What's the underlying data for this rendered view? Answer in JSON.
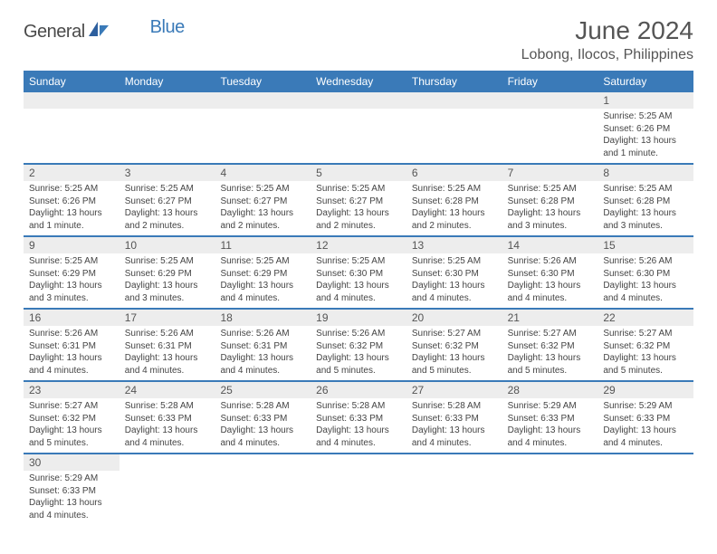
{
  "logo": {
    "text1": "General",
    "text2": "Blue"
  },
  "title": "June 2024",
  "location": "Lobong, Ilocos, Philippines",
  "weekdays": [
    "Sunday",
    "Monday",
    "Tuesday",
    "Wednesday",
    "Thursday",
    "Friday",
    "Saturday"
  ],
  "colors": {
    "header_bg": "#3a7ab8",
    "header_text": "#ffffff",
    "daynum_bg": "#ededed",
    "text": "#555555",
    "border": "#3a7ab8"
  },
  "weeks": [
    [
      null,
      null,
      null,
      null,
      null,
      null,
      {
        "n": "1",
        "sunrise": "Sunrise: 5:25 AM",
        "sunset": "Sunset: 6:26 PM",
        "daylight": "Daylight: 13 hours and 1 minute."
      }
    ],
    [
      {
        "n": "2",
        "sunrise": "Sunrise: 5:25 AM",
        "sunset": "Sunset: 6:26 PM",
        "daylight": "Daylight: 13 hours and 1 minute."
      },
      {
        "n": "3",
        "sunrise": "Sunrise: 5:25 AM",
        "sunset": "Sunset: 6:27 PM",
        "daylight": "Daylight: 13 hours and 2 minutes."
      },
      {
        "n": "4",
        "sunrise": "Sunrise: 5:25 AM",
        "sunset": "Sunset: 6:27 PM",
        "daylight": "Daylight: 13 hours and 2 minutes."
      },
      {
        "n": "5",
        "sunrise": "Sunrise: 5:25 AM",
        "sunset": "Sunset: 6:27 PM",
        "daylight": "Daylight: 13 hours and 2 minutes."
      },
      {
        "n": "6",
        "sunrise": "Sunrise: 5:25 AM",
        "sunset": "Sunset: 6:28 PM",
        "daylight": "Daylight: 13 hours and 2 minutes."
      },
      {
        "n": "7",
        "sunrise": "Sunrise: 5:25 AM",
        "sunset": "Sunset: 6:28 PM",
        "daylight": "Daylight: 13 hours and 3 minutes."
      },
      {
        "n": "8",
        "sunrise": "Sunrise: 5:25 AM",
        "sunset": "Sunset: 6:28 PM",
        "daylight": "Daylight: 13 hours and 3 minutes."
      }
    ],
    [
      {
        "n": "9",
        "sunrise": "Sunrise: 5:25 AM",
        "sunset": "Sunset: 6:29 PM",
        "daylight": "Daylight: 13 hours and 3 minutes."
      },
      {
        "n": "10",
        "sunrise": "Sunrise: 5:25 AM",
        "sunset": "Sunset: 6:29 PM",
        "daylight": "Daylight: 13 hours and 3 minutes."
      },
      {
        "n": "11",
        "sunrise": "Sunrise: 5:25 AM",
        "sunset": "Sunset: 6:29 PM",
        "daylight": "Daylight: 13 hours and 4 minutes."
      },
      {
        "n": "12",
        "sunrise": "Sunrise: 5:25 AM",
        "sunset": "Sunset: 6:30 PM",
        "daylight": "Daylight: 13 hours and 4 minutes."
      },
      {
        "n": "13",
        "sunrise": "Sunrise: 5:25 AM",
        "sunset": "Sunset: 6:30 PM",
        "daylight": "Daylight: 13 hours and 4 minutes."
      },
      {
        "n": "14",
        "sunrise": "Sunrise: 5:26 AM",
        "sunset": "Sunset: 6:30 PM",
        "daylight": "Daylight: 13 hours and 4 minutes."
      },
      {
        "n": "15",
        "sunrise": "Sunrise: 5:26 AM",
        "sunset": "Sunset: 6:30 PM",
        "daylight": "Daylight: 13 hours and 4 minutes."
      }
    ],
    [
      {
        "n": "16",
        "sunrise": "Sunrise: 5:26 AM",
        "sunset": "Sunset: 6:31 PM",
        "daylight": "Daylight: 13 hours and 4 minutes."
      },
      {
        "n": "17",
        "sunrise": "Sunrise: 5:26 AM",
        "sunset": "Sunset: 6:31 PM",
        "daylight": "Daylight: 13 hours and 4 minutes."
      },
      {
        "n": "18",
        "sunrise": "Sunrise: 5:26 AM",
        "sunset": "Sunset: 6:31 PM",
        "daylight": "Daylight: 13 hours and 4 minutes."
      },
      {
        "n": "19",
        "sunrise": "Sunrise: 5:26 AM",
        "sunset": "Sunset: 6:32 PM",
        "daylight": "Daylight: 13 hours and 5 minutes."
      },
      {
        "n": "20",
        "sunrise": "Sunrise: 5:27 AM",
        "sunset": "Sunset: 6:32 PM",
        "daylight": "Daylight: 13 hours and 5 minutes."
      },
      {
        "n": "21",
        "sunrise": "Sunrise: 5:27 AM",
        "sunset": "Sunset: 6:32 PM",
        "daylight": "Daylight: 13 hours and 5 minutes."
      },
      {
        "n": "22",
        "sunrise": "Sunrise: 5:27 AM",
        "sunset": "Sunset: 6:32 PM",
        "daylight": "Daylight: 13 hours and 5 minutes."
      }
    ],
    [
      {
        "n": "23",
        "sunrise": "Sunrise: 5:27 AM",
        "sunset": "Sunset: 6:32 PM",
        "daylight": "Daylight: 13 hours and 5 minutes."
      },
      {
        "n": "24",
        "sunrise": "Sunrise: 5:28 AM",
        "sunset": "Sunset: 6:33 PM",
        "daylight": "Daylight: 13 hours and 4 minutes."
      },
      {
        "n": "25",
        "sunrise": "Sunrise: 5:28 AM",
        "sunset": "Sunset: 6:33 PM",
        "daylight": "Daylight: 13 hours and 4 minutes."
      },
      {
        "n": "26",
        "sunrise": "Sunrise: 5:28 AM",
        "sunset": "Sunset: 6:33 PM",
        "daylight": "Daylight: 13 hours and 4 minutes."
      },
      {
        "n": "27",
        "sunrise": "Sunrise: 5:28 AM",
        "sunset": "Sunset: 6:33 PM",
        "daylight": "Daylight: 13 hours and 4 minutes."
      },
      {
        "n": "28",
        "sunrise": "Sunrise: 5:29 AM",
        "sunset": "Sunset: 6:33 PM",
        "daylight": "Daylight: 13 hours and 4 minutes."
      },
      {
        "n": "29",
        "sunrise": "Sunrise: 5:29 AM",
        "sunset": "Sunset: 6:33 PM",
        "daylight": "Daylight: 13 hours and 4 minutes."
      }
    ],
    [
      {
        "n": "30",
        "sunrise": "Sunrise: 5:29 AM",
        "sunset": "Sunset: 6:33 PM",
        "daylight": "Daylight: 13 hours and 4 minutes."
      },
      null,
      null,
      null,
      null,
      null,
      null
    ]
  ]
}
